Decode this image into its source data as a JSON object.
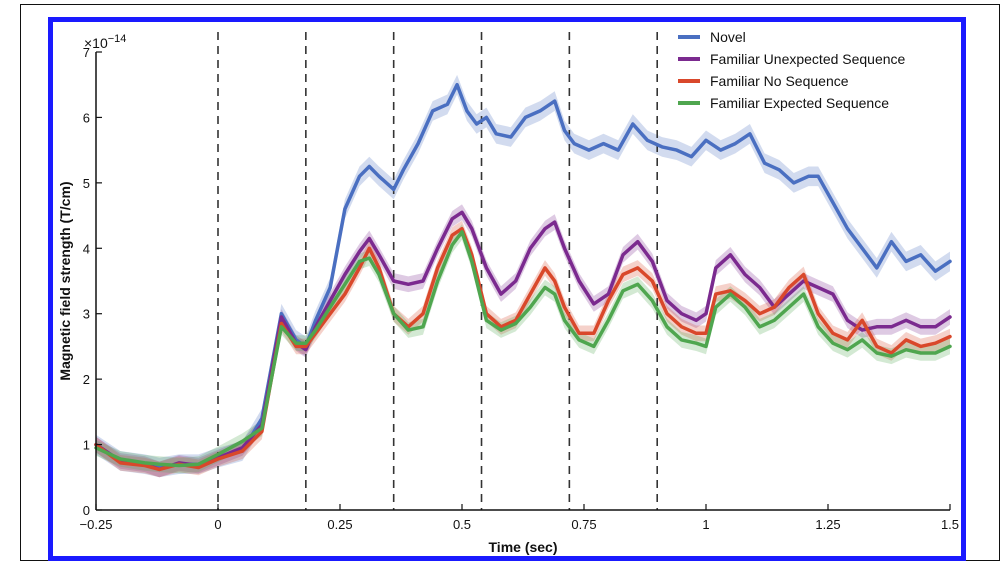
{
  "chart_data": {
    "type": "line",
    "title": "",
    "xlabel": "Time (sec)",
    "ylabel": "Magnetic field strength (T/cm)",
    "y_exponent_label": "×10",
    "y_exponent_power": "−14",
    "xlim": [
      -0.25,
      1.5
    ],
    "ylim": [
      0,
      7
    ],
    "x_ticks": [
      -0.25,
      0,
      0.25,
      0.5,
      0.75,
      1,
      1.25,
      1.5
    ],
    "x_tick_labels": [
      "−0.25",
      "0",
      "0.25",
      "0.5",
      "0.75",
      "1",
      "1.25",
      "1.5"
    ],
    "y_ticks": [
      0,
      1,
      2,
      3,
      4,
      5,
      6,
      7
    ],
    "y_tick_labels": [
      "0",
      "1",
      "2",
      "3",
      "4",
      "5",
      "6",
      "7"
    ],
    "stimulus_onsets": [
      0,
      0.18,
      0.36,
      0.54,
      0.72,
      0.9
    ],
    "grid": false,
    "legend_position": "top-right",
    "series": [
      {
        "name": "Novel",
        "color": "#4a6fc1",
        "x": [
          -0.25,
          -0.2,
          -0.15,
          -0.12,
          -0.08,
          -0.04,
          0,
          0.05,
          0.09,
          0.13,
          0.16,
          0.18,
          0.2,
          0.23,
          0.26,
          0.29,
          0.31,
          0.33,
          0.36,
          0.38,
          0.41,
          0.44,
          0.47,
          0.49,
          0.51,
          0.53,
          0.55,
          0.57,
          0.6,
          0.63,
          0.66,
          0.69,
          0.71,
          0.73,
          0.76,
          0.79,
          0.82,
          0.85,
          0.88,
          0.91,
          0.94,
          0.97,
          1.0,
          1.03,
          1.06,
          1.09,
          1.12,
          1.15,
          1.18,
          1.21,
          1.23,
          1.26,
          1.29,
          1.32,
          1.35,
          1.38,
          1.41,
          1.44,
          1.47,
          1.5
        ],
        "values": [
          1.0,
          0.75,
          0.7,
          0.65,
          0.7,
          0.7,
          0.8,
          0.9,
          1.4,
          3.0,
          2.6,
          2.5,
          2.9,
          3.4,
          4.6,
          5.1,
          5.25,
          5.1,
          4.9,
          5.2,
          5.6,
          6.1,
          6.2,
          6.5,
          6.1,
          5.9,
          6.0,
          5.75,
          5.7,
          6.0,
          6.1,
          6.25,
          5.8,
          5.6,
          5.5,
          5.6,
          5.5,
          5.9,
          5.65,
          5.55,
          5.5,
          5.4,
          5.65,
          5.5,
          5.6,
          5.75,
          5.3,
          5.2,
          5.0,
          5.1,
          5.1,
          4.7,
          4.3,
          4.0,
          3.7,
          4.1,
          3.8,
          3.9,
          3.65,
          3.8
        ],
        "band_halfwidth": 0.15
      },
      {
        "name": "Familiar Unexpected Sequence",
        "color": "#7b2a8f",
        "x": [
          -0.25,
          -0.2,
          -0.15,
          -0.12,
          -0.08,
          -0.04,
          0,
          0.05,
          0.09,
          0.13,
          0.16,
          0.18,
          0.2,
          0.23,
          0.26,
          0.29,
          0.31,
          0.33,
          0.36,
          0.39,
          0.42,
          0.45,
          0.48,
          0.5,
          0.52,
          0.55,
          0.58,
          0.61,
          0.64,
          0.67,
          0.69,
          0.71,
          0.74,
          0.77,
          0.8,
          0.83,
          0.86,
          0.89,
          0.92,
          0.95,
          0.98,
          1.0,
          1.02,
          1.05,
          1.08,
          1.11,
          1.14,
          1.17,
          1.2,
          1.23,
          1.26,
          1.29,
          1.32,
          1.35,
          1.38,
          1.41,
          1.44,
          1.47,
          1.5
        ],
        "values": [
          1.0,
          0.75,
          0.7,
          0.62,
          0.72,
          0.68,
          0.8,
          0.95,
          1.3,
          2.95,
          2.55,
          2.45,
          2.8,
          3.2,
          3.6,
          3.95,
          4.15,
          3.9,
          3.5,
          3.45,
          3.5,
          4.0,
          4.45,
          4.55,
          4.3,
          3.7,
          3.3,
          3.5,
          4.0,
          4.3,
          4.4,
          4.0,
          3.5,
          3.15,
          3.3,
          3.9,
          4.1,
          3.8,
          3.2,
          3.0,
          2.9,
          3.0,
          3.7,
          3.9,
          3.6,
          3.4,
          3.1,
          3.3,
          3.5,
          3.4,
          3.3,
          2.9,
          2.75,
          2.8,
          2.8,
          2.9,
          2.8,
          2.8,
          2.95
        ],
        "band_halfwidth": 0.12
      },
      {
        "name": "Familiar No Sequence",
        "color": "#d9482b",
        "x": [
          -0.25,
          -0.2,
          -0.15,
          -0.12,
          -0.08,
          -0.04,
          0,
          0.05,
          0.09,
          0.13,
          0.16,
          0.18,
          0.2,
          0.23,
          0.26,
          0.29,
          0.31,
          0.33,
          0.36,
          0.39,
          0.42,
          0.45,
          0.48,
          0.5,
          0.52,
          0.55,
          0.58,
          0.61,
          0.64,
          0.67,
          0.69,
          0.71,
          0.74,
          0.77,
          0.8,
          0.83,
          0.86,
          0.89,
          0.92,
          0.95,
          0.98,
          1.0,
          1.02,
          1.05,
          1.08,
          1.11,
          1.14,
          1.17,
          1.2,
          1.23,
          1.26,
          1.29,
          1.32,
          1.35,
          1.38,
          1.41,
          1.44,
          1.47,
          1.5
        ],
        "values": [
          1.0,
          0.72,
          0.68,
          0.62,
          0.7,
          0.65,
          0.78,
          0.9,
          1.2,
          2.85,
          2.5,
          2.5,
          2.7,
          3.0,
          3.3,
          3.7,
          4.0,
          3.7,
          3.0,
          2.8,
          3.0,
          3.7,
          4.2,
          4.3,
          3.9,
          3.0,
          2.8,
          2.9,
          3.3,
          3.7,
          3.5,
          3.1,
          2.7,
          2.7,
          3.2,
          3.6,
          3.7,
          3.5,
          3.0,
          2.8,
          2.7,
          2.7,
          3.3,
          3.35,
          3.2,
          3.0,
          3.1,
          3.4,
          3.6,
          3.0,
          2.7,
          2.6,
          2.9,
          2.5,
          2.4,
          2.6,
          2.5,
          2.55,
          2.65
        ],
        "band_halfwidth": 0.12
      },
      {
        "name": "Familiar Expected Sequence",
        "color": "#4fa64f",
        "x": [
          -0.25,
          -0.2,
          -0.15,
          -0.12,
          -0.08,
          -0.04,
          0,
          0.05,
          0.09,
          0.13,
          0.16,
          0.18,
          0.2,
          0.23,
          0.26,
          0.29,
          0.31,
          0.33,
          0.36,
          0.39,
          0.42,
          0.45,
          0.48,
          0.5,
          0.52,
          0.55,
          0.58,
          0.61,
          0.64,
          0.67,
          0.69,
          0.71,
          0.74,
          0.77,
          0.8,
          0.83,
          0.86,
          0.89,
          0.92,
          0.95,
          0.98,
          1.0,
          1.02,
          1.05,
          1.08,
          1.11,
          1.14,
          1.17,
          1.2,
          1.23,
          1.26,
          1.29,
          1.32,
          1.35,
          1.38,
          1.41,
          1.44,
          1.47,
          1.5
        ],
        "values": [
          0.95,
          0.78,
          0.72,
          0.7,
          0.68,
          0.7,
          0.85,
          1.05,
          1.25,
          2.8,
          2.55,
          2.55,
          2.75,
          3.1,
          3.45,
          3.8,
          3.85,
          3.6,
          3.0,
          2.75,
          2.8,
          3.5,
          4.05,
          4.25,
          3.8,
          2.9,
          2.75,
          2.85,
          3.1,
          3.4,
          3.3,
          2.9,
          2.6,
          2.5,
          2.9,
          3.35,
          3.45,
          3.2,
          2.8,
          2.6,
          2.55,
          2.5,
          3.1,
          3.3,
          3.1,
          2.8,
          2.9,
          3.1,
          3.3,
          2.8,
          2.55,
          2.45,
          2.6,
          2.4,
          2.35,
          2.45,
          2.4,
          2.4,
          2.5
        ],
        "band_halfwidth": 0.12
      }
    ]
  }
}
